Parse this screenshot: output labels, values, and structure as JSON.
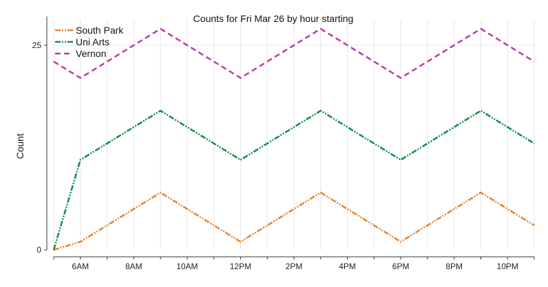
{
  "chart_data": {
    "type": "line",
    "title": "Counts for Fri Mar 26 by hour starting",
    "xlabel": "",
    "ylabel": "Count",
    "x": [
      5,
      6,
      7,
      8,
      9,
      10,
      11,
      12,
      13,
      14,
      15,
      16,
      17,
      18,
      19,
      20,
      21,
      22,
      23
    ],
    "x_ticks": [
      {
        "hour": 6,
        "label": "6AM"
      },
      {
        "hour": 8,
        "label": "8AM"
      },
      {
        "hour": 10,
        "label": "10AM"
      },
      {
        "hour": 12,
        "label": "12PM"
      },
      {
        "hour": 14,
        "label": "2PM"
      },
      {
        "hour": 16,
        "label": "4PM"
      },
      {
        "hour": 18,
        "label": "6PM"
      },
      {
        "hour": 20,
        "label": "8PM"
      },
      {
        "hour": 22,
        "label": "10PM"
      }
    ],
    "xlim": [
      5,
      23
    ],
    "y_ticks": [
      {
        "value": 0,
        "label": "0"
      },
      {
        "value": 25,
        "label": "25"
      }
    ],
    "ylim": [
      0,
      27.5
    ],
    "grid": "vertical lines at every hour and horizontal line at 25",
    "legend": "top-left",
    "series": [
      {
        "name": "South Park",
        "color": "#e8822a",
        "dash": "dash-dot-dot",
        "values": [
          0,
          1,
          3,
          5,
          7,
          5,
          3,
          1,
          3,
          5,
          7,
          5,
          3,
          1,
          3,
          5,
          7,
          5,
          3
        ]
      },
      {
        "name": "Uni Arts",
        "color": "#0f8c45",
        "dash": "dash-dot-dot",
        "values": [
          0,
          11,
          13,
          15,
          17,
          15,
          13,
          11,
          13,
          15,
          17,
          15,
          13,
          11,
          13,
          15,
          17,
          15,
          13
        ]
      },
      {
        "name": "Vernon",
        "color": "#b83e9f",
        "dash": "dash",
        "values": [
          23,
          21,
          23,
          25,
          27,
          25,
          23,
          21,
          23,
          25,
          27,
          25,
          23,
          21,
          23,
          25,
          27,
          25,
          23
        ]
      }
    ]
  }
}
